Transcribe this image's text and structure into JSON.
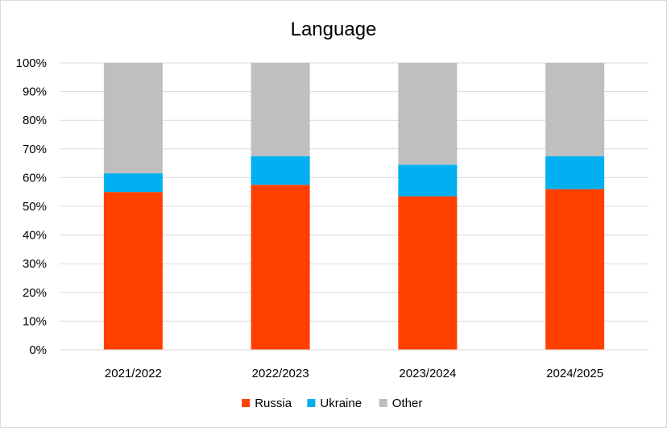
{
  "chart_data": {
    "type": "bar",
    "stacked": true,
    "normalized": true,
    "title": "Language",
    "xlabel": "",
    "ylabel": "",
    "categories": [
      "2021/2022",
      "2022/2023",
      "2023/2024",
      "2024/2025"
    ],
    "series": [
      {
        "name": "Russia",
        "color": "#ff4000",
        "values": [
          55,
          57.5,
          53.5,
          56
        ]
      },
      {
        "name": "Ukraine",
        "color": "#00b0f0",
        "values": [
          6.5,
          10,
          11,
          11.5
        ]
      },
      {
        "name": "Other",
        "color": "#bfbfbf",
        "values": [
          38.5,
          32.5,
          35.5,
          32.5
        ]
      }
    ],
    "ylim": [
      0,
      100
    ],
    "yticks": [
      "0%",
      "10%",
      "20%",
      "30%",
      "40%",
      "50%",
      "60%",
      "70%",
      "80%",
      "90%",
      "100%"
    ],
    "grid": true,
    "legend": "bottom"
  }
}
